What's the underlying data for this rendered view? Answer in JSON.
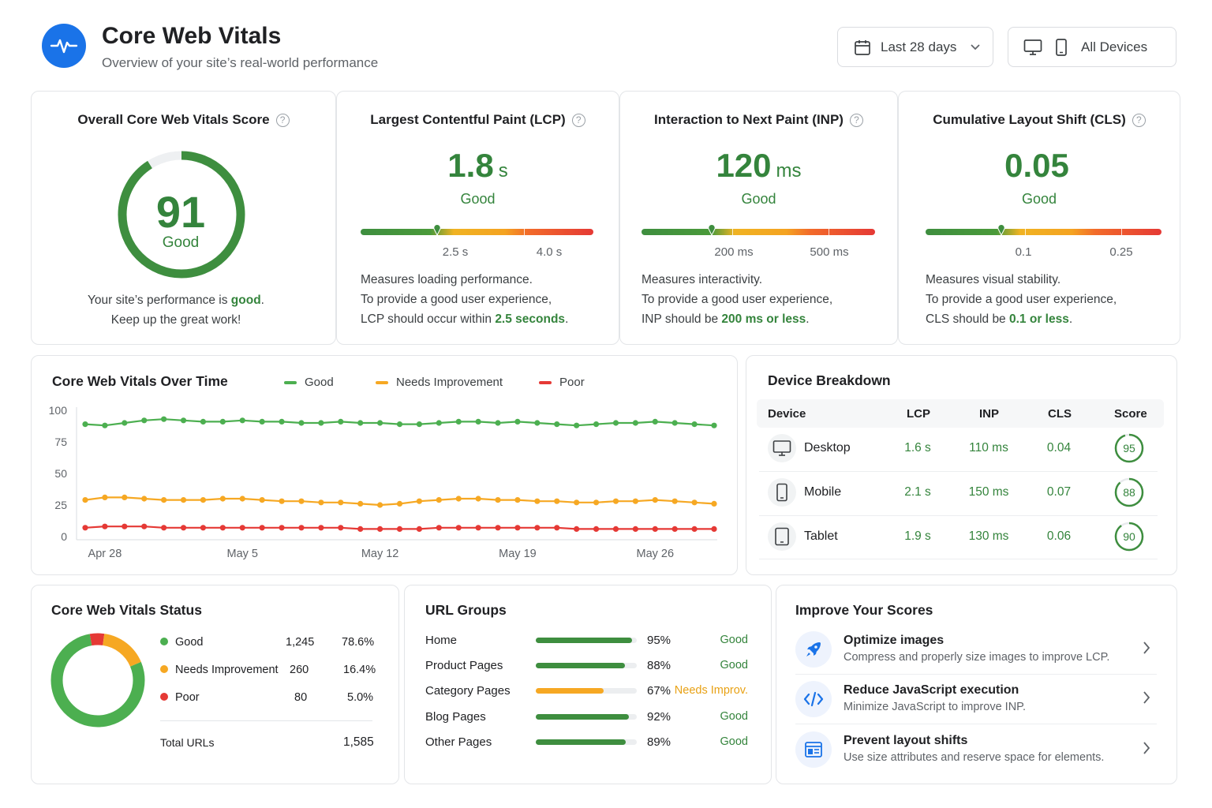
{
  "header": {
    "title": "Core Web Vitals",
    "subtitle": "Overview of your site’s real-world performance",
    "date_range": "Last 28 days",
    "device_filter": "All Devices",
    "logo_icon": "pulse-icon"
  },
  "overall": {
    "title": "Overall Core Web Vitals Score",
    "score": "91",
    "score_value": 91,
    "rating": "Good",
    "msg_prefix": "Your site’s performance is ",
    "msg_emph": "good",
    "msg_suffix": ".",
    "msg_line2": "Keep up the great work!"
  },
  "lcp": {
    "title": "Largest Contentful Paint (LCP)",
    "value": "1.8",
    "unit": "s",
    "rating": "Good",
    "threshold_1": "2.5 s",
    "threshold_2": "4.0 s",
    "marker_fraction": 0.33,
    "desc_1": "Measures loading performance.",
    "desc_2": "To provide a good user experience,",
    "desc_3_prefix": "LCP should occur within ",
    "desc_3_emph": "2.5 seconds",
    "desc_3_suffix": "."
  },
  "inp": {
    "title": "Interaction to Next Paint (INP)",
    "value": "120",
    "unit": "ms",
    "rating": "Good",
    "threshold_1": "200 ms",
    "threshold_2": "500 ms",
    "marker_fraction": 0.3,
    "desc_1": "Measures interactivity.",
    "desc_2": "To provide a good user experience,",
    "desc_3_prefix": "INP should be ",
    "desc_3_emph": "200 ms or less",
    "desc_3_suffix": "."
  },
  "cls": {
    "title": "Cumulative Layout Shift (CLS)",
    "value": "0.05",
    "unit": "",
    "rating": "Good",
    "threshold_1": "0.1",
    "threshold_2": "0.25",
    "marker_fraction": 0.32,
    "desc_1": "Measures visual stability.",
    "desc_2": "To provide a good user experience,",
    "desc_3_prefix": "CLS should be ",
    "desc_3_emph": "0.1 or less",
    "desc_3_suffix": "."
  },
  "trend": {
    "title": "Core Web Vitals Over Time",
    "legend_good": "Good",
    "legend_ni": "Needs Improvement",
    "legend_poor": "Poor"
  },
  "chart_data": {
    "type": "line",
    "title": "Core Web Vitals Over Time",
    "xlabel": "",
    "ylabel": "",
    "ylim": [
      0,
      100
    ],
    "y_ticks": [
      "100",
      "75",
      "50",
      "25",
      "0"
    ],
    "x_tick_labels": [
      "Apr 28",
      "May 5",
      "May 12",
      "May 19",
      "May 26"
    ],
    "x_tick_index": [
      1,
      8,
      15,
      22,
      29
    ],
    "grid": false,
    "legend_position": "top",
    "colors": {
      "Good": "#4caf50",
      "Needs Improvement": "#f6a823",
      "Poor": "#e53935"
    },
    "series": [
      {
        "name": "Good",
        "values": [
          89,
          88,
          90,
          92,
          93,
          92,
          91,
          91,
          92,
          91,
          91,
          90,
          90,
          91,
          90,
          90,
          89,
          89,
          90,
          91,
          91,
          90,
          91,
          90,
          89,
          88,
          89,
          90,
          90,
          91,
          90,
          89,
          88
        ]
      },
      {
        "name": "Needs Improvement",
        "values": [
          29,
          31,
          31,
          30,
          29,
          29,
          29,
          30,
          30,
          29,
          28,
          28,
          27,
          27,
          26,
          25,
          26,
          28,
          29,
          30,
          30,
          29,
          29,
          28,
          28,
          27,
          27,
          28,
          28,
          29,
          28,
          27,
          26
        ]
      },
      {
        "name": "Poor",
        "values": [
          7,
          8,
          8,
          8,
          7,
          7,
          7,
          7,
          7,
          7,
          7,
          7,
          7,
          7,
          6,
          6,
          6,
          6,
          7,
          7,
          7,
          7,
          7,
          7,
          7,
          6,
          6,
          6,
          6,
          6,
          6,
          6,
          6
        ]
      }
    ]
  },
  "devices": {
    "title": "Device Breakdown",
    "headers": [
      "Device",
      "LCP",
      "INP",
      "CLS",
      "Score"
    ],
    "rows": [
      {
        "name": "Desktop",
        "icon": "desktop-icon",
        "lcp": "1.6 s",
        "inp": "110 ms",
        "cls": "0.04",
        "score": "95",
        "score_value": 95
      },
      {
        "name": "Mobile",
        "icon": "mobile-icon",
        "lcp": "2.1 s",
        "inp": "150 ms",
        "cls": "0.07",
        "score": "88",
        "score_value": 88
      },
      {
        "name": "Tablet",
        "icon": "tablet-icon",
        "lcp": "1.9 s",
        "inp": "130 ms",
        "cls": "0.06",
        "score": "90",
        "score_value": 90
      }
    ]
  },
  "status": {
    "title": "Core Web Vitals Status",
    "rows": [
      {
        "label": "Good",
        "count": "1,245",
        "pct": "78.6%",
        "pct_value": 78.6,
        "color": "#4caf50"
      },
      {
        "label": "Needs Improvement",
        "count": "260",
        "pct": "16.4%",
        "pct_value": 16.4,
        "color": "#f6a823"
      },
      {
        "label": "Poor",
        "count": "80",
        "pct": "5.0%",
        "pct_value": 5.0,
        "color": "#e53935"
      }
    ],
    "total_label": "Total URLs",
    "total_value": "1,585"
  },
  "url_groups": {
    "title": "URL Groups",
    "rows": [
      {
        "name": "Home",
        "pct": "95%",
        "pct_value": 95,
        "status": "Good",
        "color": "#3e8e3f",
        "status_color": "#34843c"
      },
      {
        "name": "Product Pages",
        "pct": "88%",
        "pct_value": 88,
        "status": "Good",
        "color": "#3e8e3f",
        "status_color": "#34843c"
      },
      {
        "name": "Category Pages",
        "pct": "67%",
        "pct_value": 67,
        "status": "Needs Improv.",
        "color": "#f6a823",
        "status_color": "#e8a114"
      },
      {
        "name": "Blog Pages",
        "pct": "92%",
        "pct_value": 92,
        "status": "Good",
        "color": "#3e8e3f",
        "status_color": "#34843c"
      },
      {
        "name": "Other Pages",
        "pct": "89%",
        "pct_value": 89,
        "status": "Good",
        "color": "#3e8e3f",
        "status_color": "#34843c"
      }
    ]
  },
  "improve": {
    "title": "Improve Your Scores",
    "items": [
      {
        "title": "Optimize images",
        "sub": "Compress and properly size images to improve LCP.",
        "icon": "rocket-icon"
      },
      {
        "title": "Reduce JavaScript execution",
        "sub": "Minimize JavaScript to improve INP.",
        "icon": "code-icon"
      },
      {
        "title": "Prevent layout shifts",
        "sub": "Use size attributes and reserve space for elements.",
        "icon": "layout-icon"
      }
    ]
  }
}
